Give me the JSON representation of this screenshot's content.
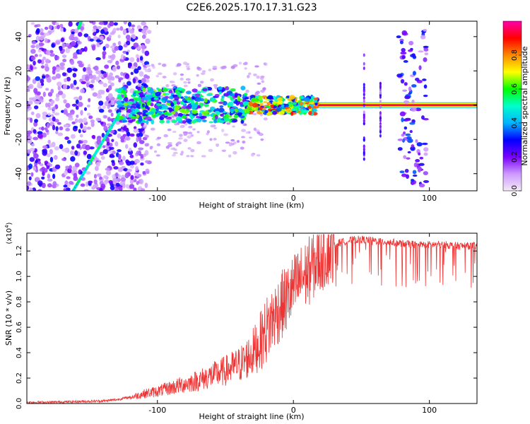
{
  "chart_data": [
    {
      "type": "heatmap",
      "title": "C2E6.2025.170.17.31.G23",
      "xlabel": "Height of straight line (km)",
      "ylabel": "Frequency (Hz)",
      "xlim": [
        -196,
        135
      ],
      "ylim": [
        -50,
        49
      ],
      "xticks": [
        -100,
        0,
        100
      ],
      "xtick_labels": [
        "-100",
        "0",
        "100"
      ],
      "yticks": [
        -40,
        -20,
        0,
        20,
        40
      ],
      "ytick_labels": [
        "-40",
        "-20",
        "0",
        "20",
        "40"
      ],
      "colorbar": {
        "label": "Normalized spectral amplitude",
        "range": [
          0,
          1
        ],
        "ticks": [
          0,
          0.2,
          0.4,
          0.6,
          0.8
        ],
        "tick_labels": [
          "0.0",
          "0.2",
          "0.4",
          "0.6",
          "0.8"
        ],
        "colors": [
          "#f4eaf6",
          "#cc99ff",
          "#7a00ff",
          "#0000ff",
          "#00b4ff",
          "#00ffcc",
          "#00ff00",
          "#ffff00",
          "#ff8800",
          "#ff0000",
          "#ff00aa"
        ]
      },
      "features": [
        {
          "name": "carrier line",
          "x_range": [
            18,
            135
          ],
          "frequency": 0,
          "amplitude": 0.95
        },
        {
          "name": "broadband cluster",
          "x_range": [
            -130,
            -35
          ],
          "frequency_range": [
            -10,
            10
          ],
          "amplitude": 0.55
        },
        {
          "name": "narrowing cluster",
          "x_range": [
            -35,
            18
          ],
          "frequency_range": [
            -5,
            5
          ],
          "amplitude": 0.75
        },
        {
          "name": "doppler track",
          "x_points": [
            [
              -162,
              -50
            ],
            [
              -128,
              -5
            ]
          ],
          "amplitude": 0.5
        },
        {
          "name": "doppler track upper",
          "x_points": [
            [
              -158,
              45
            ],
            [
              -153,
              55
            ]
          ],
          "amplitude": 0.5
        },
        {
          "name": "vertical band",
          "x_range": [
            77,
            98
          ],
          "frequency_range": [
            -48,
            46
          ],
          "amplitude": 0.3
        },
        {
          "name": "vertical streak",
          "x": 52,
          "frequency_range": [
            -35,
            30
          ],
          "amplitude": 0.25
        },
        {
          "name": "vertical streak",
          "x": 64,
          "frequency_range": [
            -20,
            15
          ],
          "amplitude": 0.25
        }
      ]
    },
    {
      "type": "line",
      "xlabel": "Height of straight line (km)",
      "ylabel": "SNR (10 * v/v)",
      "y_multiplier": "(x10^4)",
      "xlim": [
        -196,
        135
      ],
      "ylim": [
        0,
        1.34
      ],
      "xticks": [
        -100,
        0,
        100
      ],
      "xtick_labels": [
        "-100",
        "0",
        "100"
      ],
      "yticks": [
        0,
        0.2,
        0.4,
        0.6,
        0.8,
        1.0,
        1.2
      ],
      "ytick_labels": [
        "0.0",
        "0.2",
        "0.4",
        "0.6",
        "0.8",
        "1.0",
        "1.2"
      ],
      "series": [
        {
          "color": "#ee3333",
          "x": [
            -196,
            -180,
            -160,
            -140,
            -130,
            -120,
            -110,
            -100,
            -90,
            -80,
            -70,
            -60,
            -50,
            -40,
            -35,
            -30,
            -25,
            -20,
            -15,
            -10,
            -5,
            0,
            5,
            10,
            15,
            20,
            25,
            30,
            35,
            40,
            45,
            50,
            60,
            70,
            80,
            90,
            100,
            110,
            120,
            130,
            135
          ],
          "values": [
            0.01,
            0.01,
            0.015,
            0.02,
            0.03,
            0.05,
            0.08,
            0.1,
            0.13,
            0.16,
            0.19,
            0.23,
            0.27,
            0.32,
            0.36,
            0.42,
            0.5,
            0.6,
            0.7,
            0.78,
            0.85,
            0.93,
            1.0,
            1.05,
            1.12,
            1.17,
            1.22,
            1.25,
            1.27,
            1.28,
            1.29,
            1.29,
            1.28,
            1.27,
            1.26,
            1.25,
            1.25,
            1.25,
            1.24,
            1.24,
            1.24
          ]
        }
      ]
    }
  ]
}
